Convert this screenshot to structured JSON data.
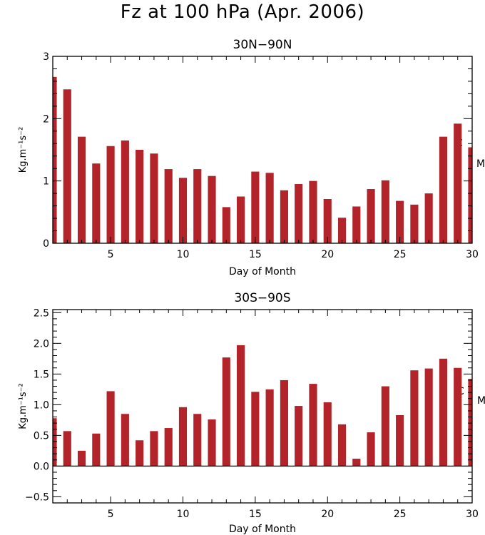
{
  "title": "Fz at 100 hPa (Apr. 2006)",
  "bar_color": "#B3242A",
  "chart_data": [
    {
      "type": "bar",
      "title": "30N−90N",
      "xlabel": "Day of Month",
      "ylabel": "Kg.m⁻¹s⁻²",
      "xlim": [
        1,
        30
      ],
      "xticks": [
        5,
        10,
        15,
        20,
        25,
        30
      ],
      "ylim": [
        0,
        3
      ],
      "yticks": [
        0,
        1,
        2,
        3
      ],
      "ytick_labels": [
        "0",
        "1",
        "2",
        "3"
      ],
      "zero_line": false,
      "legend": [
        "C",
        "M"
      ],
      "categories": [
        1,
        2,
        3,
        4,
        5,
        6,
        7,
        8,
        9,
        10,
        11,
        12,
        13,
        14,
        15,
        16,
        17,
        18,
        19,
        20,
        21,
        22,
        23,
        24,
        25,
        26,
        27,
        28,
        29,
        30
      ],
      "values": [
        2.67,
        2.47,
        1.71,
        1.28,
        1.56,
        1.65,
        1.5,
        1.44,
        1.19,
        1.05,
        1.19,
        1.08,
        0.58,
        0.75,
        1.15,
        1.13,
        0.85,
        0.95,
        1.0,
        0.71,
        0.41,
        0.59,
        0.87,
        1.01,
        0.68,
        0.62,
        0.8,
        1.71,
        1.92,
        1.54
      ]
    },
    {
      "type": "bar",
      "title": "30S−90S",
      "xlabel": "Day of Month",
      "ylabel": "Kg.m⁻¹s⁻²",
      "xlim": [
        1,
        30
      ],
      "xticks": [
        5,
        10,
        15,
        20,
        25,
        30
      ],
      "ylim": [
        -0.6,
        2.55
      ],
      "yticks": [
        -0.5,
        0,
        0.5,
        1,
        1.5,
        2,
        2.5
      ],
      "ytick_labels": [
        "−0.5",
        "0.0",
        "0.5",
        "1.0",
        "1.5",
        "2.0",
        "2.5"
      ],
      "zero_line": true,
      "legend": [
        "C",
        "M"
      ],
      "categories": [
        1,
        2,
        3,
        4,
        5,
        6,
        7,
        8,
        9,
        10,
        11,
        12,
        13,
        14,
        15,
        16,
        17,
        18,
        19,
        20,
        21,
        22,
        23,
        24,
        25,
        26,
        27,
        28,
        29,
        30
      ],
      "values": [
        0.78,
        0.57,
        0.25,
        0.53,
        1.22,
        0.85,
        0.42,
        0.57,
        0.62,
        0.96,
        0.85,
        0.76,
        1.77,
        1.97,
        1.21,
        1.25,
        1.4,
        0.98,
        1.34,
        1.04,
        0.68,
        0.12,
        0.55,
        1.3,
        0.83,
        1.56,
        1.59,
        1.75,
        1.6,
        1.42
      ]
    }
  ]
}
